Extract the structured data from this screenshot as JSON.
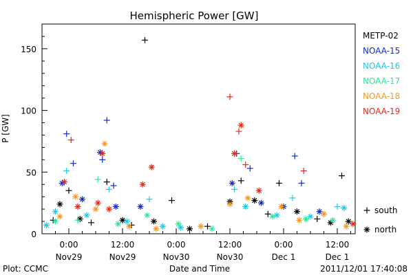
{
  "chart_data": {
    "type": "scatter",
    "title": "Hemispheric Power [GW]",
    "ylabel": "P [GW]",
    "xlabel": "Date and Time",
    "x_range": [
      "2011-11-28T18:00",
      "2011-12-01T16:00"
    ],
    "ylim": [
      0,
      170
    ],
    "yticks": [
      0,
      50,
      100,
      150
    ],
    "yminor_step": 10,
    "xticks": [
      {
        "t": "2011-11-29T00:00",
        "time": "0:00",
        "date": "Nov29"
      },
      {
        "t": "2011-11-29T12:00",
        "time": "12:00",
        "date": "Nov29"
      },
      {
        "t": "2011-11-30T00:00",
        "time": "0:00",
        "date": "Nov30"
      },
      {
        "t": "2011-11-30T12:00",
        "time": "12:00",
        "date": "Nov30"
      },
      {
        "t": "2011-12-01T00:00",
        "time": "0:00",
        "date": "Dec 1"
      },
      {
        "t": "2011-12-01T12:00",
        "time": "12:00",
        "date": "Dec 1"
      }
    ],
    "legend_position": "right",
    "marker_legend": [
      {
        "symbol": "+",
        "label": "south"
      },
      {
        "symbol": "*",
        "label": "north"
      }
    ],
    "series": [
      {
        "name": "METP-02",
        "color": "#000000",
        "points": [
          {
            "x": "2011-11-28T20:30",
            "y": 11,
            "m": "+"
          },
          {
            "x": "2011-11-28T22:00",
            "y": 24,
            "m": "*"
          },
          {
            "x": "2011-11-29T00:00",
            "y": 35,
            "m": "+"
          },
          {
            "x": "2011-11-29T02:30",
            "y": 12,
            "m": "*"
          },
          {
            "x": "2011-11-29T05:00",
            "y": 9,
            "m": "+"
          },
          {
            "x": "2011-11-29T08:30",
            "y": 42,
            "m": "+"
          },
          {
            "x": "2011-11-29T12:00",
            "y": 11,
            "m": "*"
          },
          {
            "x": "2011-11-29T14:00",
            "y": 7,
            "m": "+"
          },
          {
            "x": "2011-11-29T17:00",
            "y": 157,
            "m": "+"
          },
          {
            "x": "2011-11-29T19:00",
            "y": 10,
            "m": "*"
          },
          {
            "x": "2011-11-29T23:00",
            "y": 27,
            "m": "+"
          },
          {
            "x": "2011-11-30T03:00",
            "y": 4,
            "m": "*"
          },
          {
            "x": "2011-11-30T07:00",
            "y": 6,
            "m": "+"
          },
          {
            "x": "2011-11-30T12:00",
            "y": 26,
            "m": "*"
          },
          {
            "x": "2011-11-30T14:30",
            "y": 43,
            "m": "+"
          },
          {
            "x": "2011-11-30T17:30",
            "y": 27,
            "m": "*"
          },
          {
            "x": "2011-11-30T20:30",
            "y": 16,
            "m": "+"
          },
          {
            "x": "2011-11-30T23:00",
            "y": 41,
            "m": "+"
          },
          {
            "x": "2011-12-01T03:00",
            "y": 18,
            "m": "*"
          },
          {
            "x": "2011-12-01T07:30",
            "y": 12,
            "m": "+"
          },
          {
            "x": "2011-12-01T10:30",
            "y": 9,
            "m": "*"
          },
          {
            "x": "2011-12-01T13:00",
            "y": 47,
            "m": "+"
          },
          {
            "x": "2011-12-01T14:30",
            "y": 10,
            "m": "*"
          }
        ]
      },
      {
        "name": "NOAA-15",
        "color": "#1428c8",
        "points": [
          {
            "x": "2011-11-28T22:30",
            "y": 41,
            "m": "*"
          },
          {
            "x": "2011-11-28T23:30",
            "y": 81,
            "m": "+"
          },
          {
            "x": "2011-11-29T01:00",
            "y": 57,
            "m": "+"
          },
          {
            "x": "2011-11-29T03:00",
            "y": 28,
            "m": "*"
          },
          {
            "x": "2011-11-29T07:00",
            "y": 66,
            "m": "*"
          },
          {
            "x": "2011-11-29T07:30",
            "y": 60,
            "m": "+"
          },
          {
            "x": "2011-11-29T08:30",
            "y": 92,
            "m": "+"
          },
          {
            "x": "2011-11-29T10:00",
            "y": 39,
            "m": "+"
          },
          {
            "x": "2011-11-29T10:30",
            "y": 22,
            "m": "*"
          },
          {
            "x": "2011-11-29T16:00",
            "y": 22,
            "m": "*"
          },
          {
            "x": "2011-11-30T12:30",
            "y": 41,
            "m": "*"
          },
          {
            "x": "2011-11-30T13:30",
            "y": 65,
            "m": "+"
          },
          {
            "x": "2011-11-30T16:30",
            "y": 53,
            "m": "+"
          },
          {
            "x": "2011-11-30T19:00",
            "y": 25,
            "m": "*"
          },
          {
            "x": "2011-12-01T00:00",
            "y": 22,
            "m": "*"
          },
          {
            "x": "2011-12-01T02:30",
            "y": 63,
            "m": "+"
          },
          {
            "x": "2011-12-01T04:00",
            "y": 41,
            "m": "+"
          },
          {
            "x": "2011-12-01T08:00",
            "y": 18,
            "m": "*"
          }
        ]
      },
      {
        "name": "NOAA-16",
        "color": "#1ec8e6",
        "points": [
          {
            "x": "2011-11-28T19:00",
            "y": 7,
            "m": "*"
          },
          {
            "x": "2011-11-28T21:00",
            "y": 18,
            "m": "*"
          },
          {
            "x": "2011-11-28T23:30",
            "y": 51,
            "m": "+"
          },
          {
            "x": "2011-11-29T04:00",
            "y": 15,
            "m": "*"
          },
          {
            "x": "2011-11-29T09:00",
            "y": 36,
            "m": "+"
          },
          {
            "x": "2011-11-29T13:00",
            "y": 10,
            "m": "*"
          },
          {
            "x": "2011-11-29T18:00",
            "y": 28,
            "m": "+"
          },
          {
            "x": "2011-11-29T21:00",
            "y": 6,
            "m": "*"
          },
          {
            "x": "2011-11-30T01:00",
            "y": 5,
            "m": "*"
          },
          {
            "x": "2011-11-30T13:00",
            "y": 36,
            "m": "+"
          },
          {
            "x": "2011-11-30T15:30",
            "y": 22,
            "m": "*"
          },
          {
            "x": "2011-11-30T22:30",
            "y": 15,
            "m": "*"
          },
          {
            "x": "2011-12-01T02:00",
            "y": 29,
            "m": "+"
          },
          {
            "x": "2011-12-01T06:00",
            "y": 14,
            "m": "*"
          },
          {
            "x": "2011-12-01T12:00",
            "y": 22,
            "m": "+"
          },
          {
            "x": "2011-12-01T13:30",
            "y": 21,
            "m": "*"
          }
        ]
      },
      {
        "name": "NOAA-17",
        "color": "#32e696",
        "points": [
          {
            "x": "2011-11-28T21:00",
            "y": 10,
            "m": "*"
          },
          {
            "x": "2011-11-29T02:00",
            "y": 11,
            "m": "+"
          },
          {
            "x": "2011-11-29T06:30",
            "y": 44,
            "m": "+"
          },
          {
            "x": "2011-11-29T11:00",
            "y": 8,
            "m": "*"
          },
          {
            "x": "2011-11-29T17:30",
            "y": 15,
            "m": "*"
          },
          {
            "x": "2011-11-30T00:30",
            "y": 8,
            "m": "*"
          },
          {
            "x": "2011-11-30T08:00",
            "y": 4,
            "m": "*"
          },
          {
            "x": "2011-11-30T14:30",
            "y": 61,
            "m": "+"
          },
          {
            "x": "2011-11-30T21:30",
            "y": 14,
            "m": "*"
          },
          {
            "x": "2011-12-01T05:00",
            "y": 12,
            "m": "*"
          },
          {
            "x": "2011-12-01T11:00",
            "y": 11,
            "m": "*"
          }
        ]
      },
      {
        "name": "NOAA-18",
        "color": "#f5961e",
        "points": [
          {
            "x": "2011-11-28T22:00",
            "y": 14,
            "m": "*"
          },
          {
            "x": "2011-11-29T01:30",
            "y": 30,
            "m": "*"
          },
          {
            "x": "2011-11-29T06:00",
            "y": 20,
            "m": "*"
          },
          {
            "x": "2011-11-29T08:00",
            "y": 73,
            "m": "*"
          },
          {
            "x": "2011-11-29T13:30",
            "y": 6,
            "m": "*"
          },
          {
            "x": "2011-11-29T19:30",
            "y": 4,
            "m": "*"
          },
          {
            "x": "2011-11-30T05:30",
            "y": 6,
            "m": "*"
          },
          {
            "x": "2011-11-30T12:00",
            "y": 24,
            "m": "*"
          },
          {
            "x": "2011-11-30T16:00",
            "y": 29,
            "m": "*"
          },
          {
            "x": "2011-11-30T23:30",
            "y": 22,
            "m": "*"
          },
          {
            "x": "2011-12-01T03:30",
            "y": 11,
            "m": "*"
          },
          {
            "x": "2011-12-01T09:00",
            "y": 16,
            "m": "*"
          },
          {
            "x": "2011-12-01T14:00",
            "y": 6,
            "m": "*"
          }
        ]
      },
      {
        "name": "NOAA-19",
        "color": "#e62814",
        "points": [
          {
            "x": "2011-11-28T23:00",
            "y": 42,
            "m": "*"
          },
          {
            "x": "2011-11-29T00:30",
            "y": 76,
            "m": "+"
          },
          {
            "x": "2011-11-29T02:00",
            "y": 22,
            "m": "*"
          },
          {
            "x": "2011-11-29T06:30",
            "y": 25,
            "m": "*"
          },
          {
            "x": "2011-11-29T07:30",
            "y": 65,
            "m": "*"
          },
          {
            "x": "2011-11-29T09:00",
            "y": 20,
            "m": "*"
          },
          {
            "x": "2011-11-29T16:30",
            "y": 40,
            "m": "*"
          },
          {
            "x": "2011-11-29T18:30",
            "y": 54,
            "m": "*"
          },
          {
            "x": "2011-11-30T12:00",
            "y": 111,
            "m": "+"
          },
          {
            "x": "2011-11-30T13:00",
            "y": 65,
            "m": "*"
          },
          {
            "x": "2011-11-30T14:00",
            "y": 83,
            "m": "+"
          },
          {
            "x": "2011-11-30T14:30",
            "y": 88,
            "m": "*"
          },
          {
            "x": "2011-11-30T15:30",
            "y": 56,
            "m": "+"
          },
          {
            "x": "2011-11-30T18:30",
            "y": 35,
            "m": "*"
          },
          {
            "x": "2011-12-01T04:30",
            "y": 51,
            "m": "+"
          },
          {
            "x": "2011-12-01T15:30",
            "y": 8,
            "m": "*"
          }
        ]
      }
    ]
  },
  "footer": {
    "plot_credit": "Plot: CCMC",
    "timestamp": "2011/12/01  17:40:08"
  }
}
